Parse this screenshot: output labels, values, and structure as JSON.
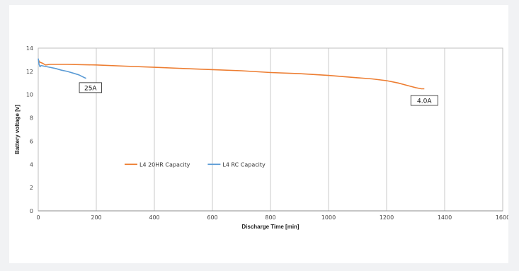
{
  "chart_data": {
    "type": "line",
    "title": "",
    "xlabel": "Discharge Time [min]",
    "ylabel": "Battery voltage [v]",
    "xlim": [
      0,
      1600
    ],
    "ylim": [
      0,
      14
    ],
    "xticks": [
      0,
      200,
      400,
      600,
      800,
      1000,
      1200,
      1400,
      1600
    ],
    "yticks": [
      0,
      2,
      4,
      6,
      8,
      10,
      12,
      14
    ],
    "grid": "vertical",
    "legend_position": "center-left",
    "series": [
      {
        "name": "L4 20HR Capacity",
        "color": "#ed7d31",
        "x": [
          0,
          5,
          15,
          25,
          40,
          100,
          200,
          300,
          400,
          500,
          600,
          700,
          800,
          900,
          1000,
          1100,
          1150,
          1200,
          1240,
          1270,
          1300,
          1320,
          1330
        ],
        "y": [
          13.0,
          12.8,
          12.7,
          12.55,
          12.6,
          12.6,
          12.55,
          12.45,
          12.35,
          12.25,
          12.15,
          12.05,
          11.9,
          11.8,
          11.65,
          11.45,
          11.35,
          11.2,
          11.0,
          10.8,
          10.6,
          10.5,
          10.5
        ]
      },
      {
        "name": "L4 RC Capacity",
        "color": "#5b9bd5",
        "x": [
          0,
          3,
          6,
          10,
          20,
          40,
          60,
          80,
          100,
          120,
          140,
          160,
          165
        ],
        "y": [
          13.1,
          12.6,
          12.4,
          12.5,
          12.45,
          12.35,
          12.25,
          12.1,
          12.0,
          11.85,
          11.7,
          11.45,
          11.4
        ]
      }
    ],
    "annotations": [
      {
        "text": "25A",
        "x": 180,
        "y": 10.6
      },
      {
        "text": "4.0A",
        "x": 1330,
        "y": 9.5
      }
    ]
  }
}
